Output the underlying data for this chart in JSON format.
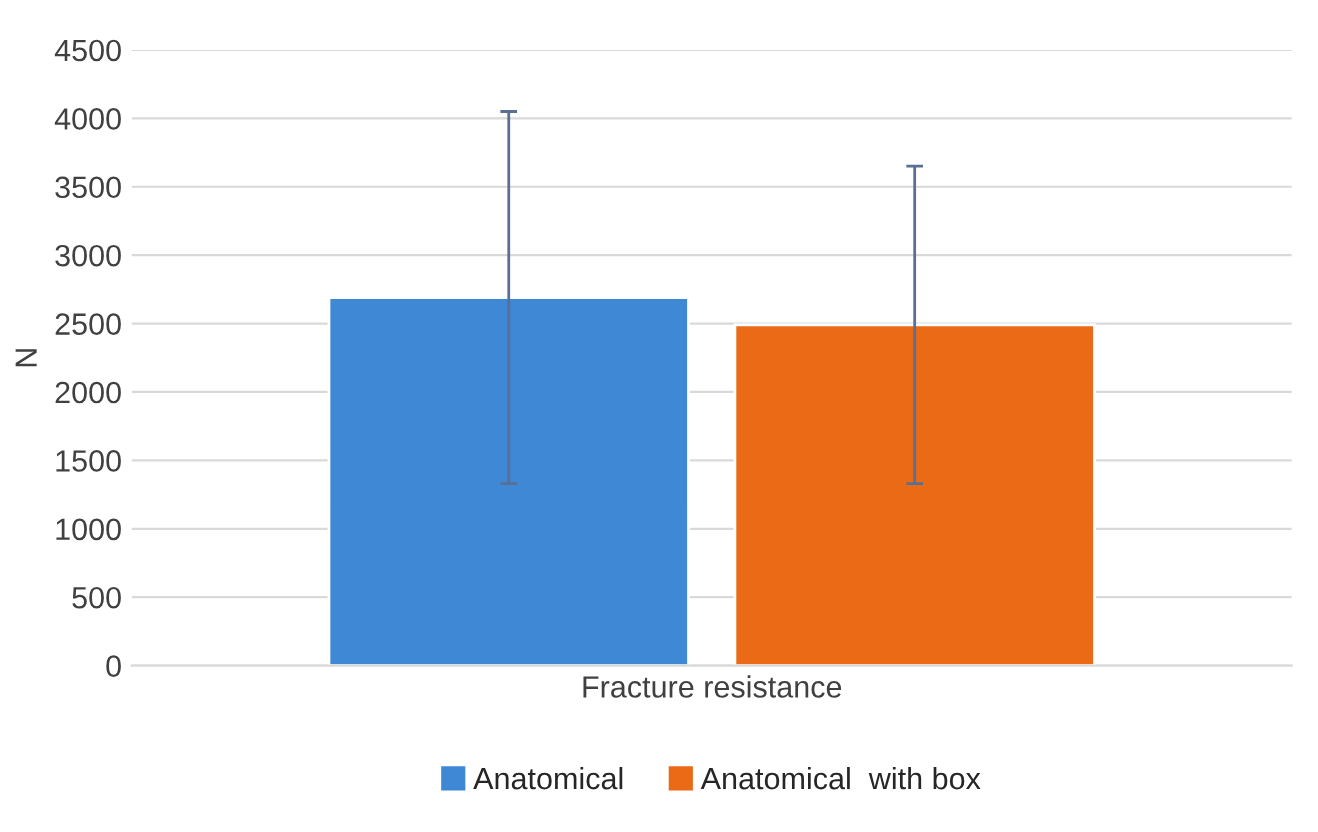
{
  "chart_data": {
    "type": "bar",
    "ylabel": "N",
    "categories": [
      "Fracture resistance"
    ],
    "series": [
      {
        "name": "Anatomical",
        "color": "#3f88d6",
        "values": [
          2690
        ],
        "errors": [
          1360
        ]
      },
      {
        "name": "Anatomical  with box",
        "color": "#ea6a16",
        "values": [
          2490
        ],
        "errors": [
          1160
        ]
      }
    ],
    "ylim": [
      0,
      4500
    ],
    "yticks": [
      0,
      500,
      1000,
      1500,
      2000,
      2500,
      3000,
      3500,
      4000,
      4500
    ],
    "grid": "y",
    "legend": "bottom"
  }
}
